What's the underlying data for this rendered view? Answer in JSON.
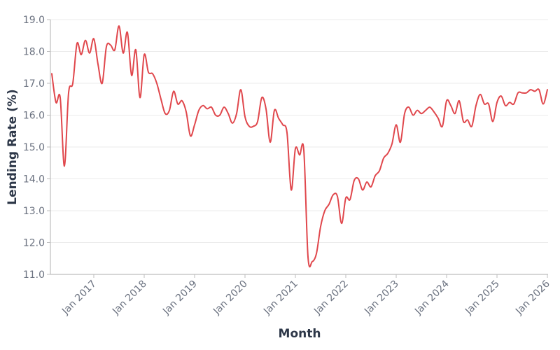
{
  "chart_data": {
    "type": "line",
    "title": "",
    "xlabel": "Month",
    "ylabel": "Lending Rate (%)",
    "ylim": [
      11.0,
      19.0
    ],
    "yticks": [
      "11.0",
      "12.0",
      "13.0",
      "14.0",
      "15.0",
      "16.0",
      "17.0",
      "18.0",
      "19.0"
    ],
    "xticks": [
      "Jan 2017",
      "Jan 2018",
      "Jan 2019",
      "Jan 2020",
      "Jan 2021",
      "Jan 2022",
      "Jan 2023",
      "Jan 2024",
      "Jan 2025",
      "Jan 2026"
    ],
    "grid": true,
    "legend": null,
    "line_color": "#e0474c",
    "x_start": "2016-03",
    "x_end": "2026-01",
    "series": [
      {
        "name": "Lending Rate (%)",
        "values": [
          17.3,
          16.4,
          16.55,
          14.4,
          16.7,
          17.0,
          18.25,
          17.9,
          18.35,
          17.95,
          18.4,
          17.6,
          17.0,
          18.15,
          18.2,
          18.05,
          18.8,
          17.95,
          18.6,
          17.25,
          18.05,
          16.55,
          17.9,
          17.35,
          17.3,
          17.0,
          16.5,
          16.05,
          16.15,
          16.75,
          16.35,
          16.45,
          16.1,
          15.35,
          15.7,
          16.15,
          16.3,
          16.2,
          16.25,
          16.0,
          16.0,
          16.25,
          16.05,
          15.75,
          16.05,
          16.8,
          15.95,
          15.65,
          15.65,
          15.8,
          16.55,
          16.2,
          15.15,
          16.15,
          15.9,
          15.7,
          15.45,
          13.65,
          14.95,
          14.75,
          14.9,
          11.55,
          11.4,
          11.65,
          12.5,
          13.0,
          13.2,
          13.5,
          13.45,
          12.6,
          13.4,
          13.35,
          13.95,
          14.0,
          13.65,
          13.9,
          13.75,
          14.1,
          14.25,
          14.65,
          14.8,
          15.1,
          15.7,
          15.15,
          16.05,
          16.25,
          16.0,
          16.15,
          16.05,
          16.15,
          16.25,
          16.1,
          15.9,
          15.65,
          16.45,
          16.3,
          16.05,
          16.45,
          15.8,
          15.85,
          15.65,
          16.3,
          16.65,
          16.35,
          16.35,
          15.8,
          16.4,
          16.6,
          16.3,
          16.4,
          16.35,
          16.7,
          16.7,
          16.7,
          16.8,
          16.75,
          16.8,
          16.35,
          16.8
        ]
      }
    ]
  }
}
